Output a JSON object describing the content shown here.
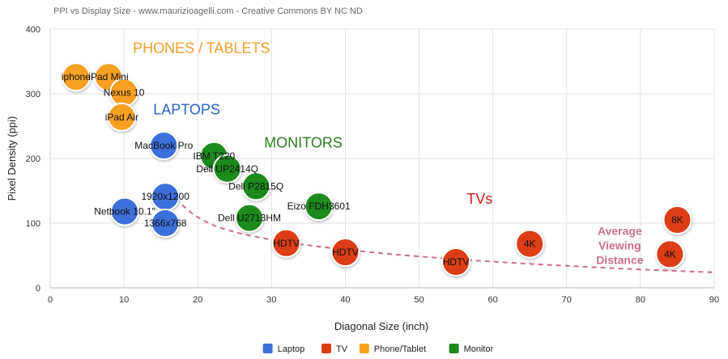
{
  "caption": "PPI vs Display Size - www.maurizioagelli.com - Creative Commons BY NC ND",
  "chart_data": {
    "type": "scatter",
    "title": "",
    "xlabel": "Diagonal Size (inch)",
    "ylabel": "Pixel Density (ppi)",
    "xlim": [
      0,
      90
    ],
    "ylim": [
      0,
      400
    ],
    "xticks": [
      "0",
      "10",
      "20",
      "30",
      "40",
      "50",
      "60",
      "70",
      "80",
      "90"
    ],
    "yticks": [
      "0",
      "100",
      "200",
      "300",
      "400"
    ],
    "grid": true,
    "legend_position": "bottom-center",
    "series": [
      {
        "name": "Laptop",
        "color": "#3a6fd8",
        "points": [
          {
            "x": 15.4,
            "y": 220,
            "label": "MacBook Pro"
          },
          {
            "x": 15.6,
            "y": 141,
            "label": "1920x1200"
          },
          {
            "x": 10.1,
            "y": 118,
            "label": "Netbook 10.1\""
          },
          {
            "x": 15.6,
            "y": 100,
            "label": "1366x768"
          }
        ]
      },
      {
        "name": "TV",
        "color": "#dd3c17",
        "points": [
          {
            "x": 32,
            "y": 69,
            "label": "HDTV"
          },
          {
            "x": 40,
            "y": 55,
            "label": "HDTV"
          },
          {
            "x": 55,
            "y": 40,
            "label": "HDTV"
          },
          {
            "x": 65,
            "y": 68,
            "label": "4K"
          },
          {
            "x": 85,
            "y": 105,
            "label": "8K"
          },
          {
            "x": 84,
            "y": 52,
            "label": "4K"
          }
        ]
      },
      {
        "name": "Phone/Tablet",
        "color": "#f7a020",
        "points": [
          {
            "x": 3.5,
            "y": 326,
            "label": "iphone"
          },
          {
            "x": 7.9,
            "y": 326,
            "label": "iPad Mini"
          },
          {
            "x": 10,
            "y": 302,
            "label": "Nexus 10"
          },
          {
            "x": 9.7,
            "y": 264,
            "label": "iPad Air"
          }
        ]
      },
      {
        "name": "Monitor",
        "color": "#1a8a1a",
        "points": [
          {
            "x": 22.2,
            "y": 204,
            "label": "IBM T220"
          },
          {
            "x": 24,
            "y": 184,
            "label": "Dell UP2414Q"
          },
          {
            "x": 27.9,
            "y": 157,
            "label": "Dell P2815Q"
          },
          {
            "x": 36.4,
            "y": 126,
            "label": "Eizo FDH3601"
          },
          {
            "x": 27,
            "y": 108,
            "label": "Dell U2713HM"
          }
        ]
      }
    ],
    "annotations": [
      {
        "text": "PHONES / TABLETS",
        "x": 20.5,
        "y": 363,
        "color": "#f39c2b"
      },
      {
        "text": "LAPTOPS",
        "x": 18.5,
        "y": 268,
        "color": "#2d62c8"
      },
      {
        "text": "MONITORS",
        "x": 34.3,
        "y": 217,
        "color": "#2d7d1f"
      },
      {
        "text": "TVs",
        "x": 58.2,
        "y": 130,
        "color": "#cc1a1a"
      }
    ],
    "curve": {
      "label_lines": [
        "Average",
        "Viewing",
        "Distance"
      ],
      "color": "#cc6e8f",
      "points": [
        [
          17,
          137
        ],
        [
          20,
          107
        ],
        [
          24,
          88
        ],
        [
          30,
          74
        ],
        [
          36,
          64
        ],
        [
          44,
          54
        ],
        [
          55,
          44
        ],
        [
          65,
          37
        ],
        [
          75,
          31
        ],
        [
          85,
          26
        ],
        [
          90,
          24
        ]
      ]
    }
  }
}
